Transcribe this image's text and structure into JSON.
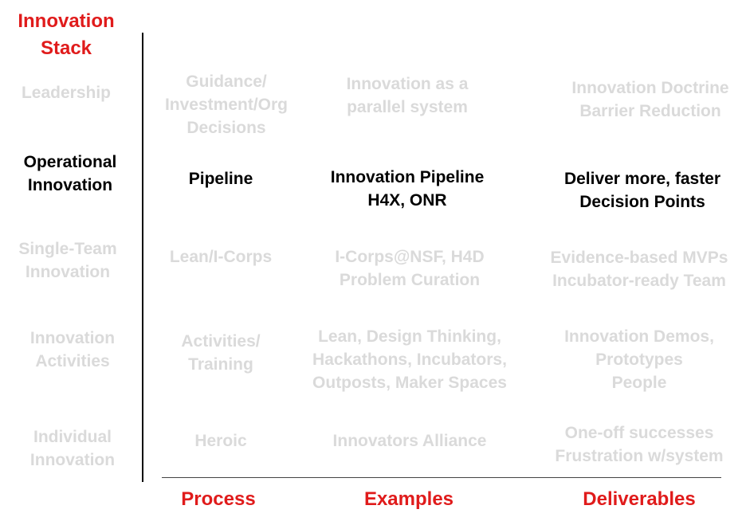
{
  "title": "Innovation\nStack",
  "colors": {
    "accent": "#e01b1b",
    "active_text": "#000000",
    "faded_text": "#dadada"
  },
  "columns": {
    "process": "Process",
    "examples": "Examples",
    "deliverables": "Deliverables"
  },
  "rows": [
    {
      "level": "Leadership",
      "process": "Guidance/\nInvestment/Org\nDecisions",
      "examples": "Innovation as a\nparallel system",
      "deliverables": "Innovation Doctrine\nBarrier Reduction",
      "highlighted": false
    },
    {
      "level": "Operational\nInnovation",
      "process": "Pipeline",
      "examples": "Innovation Pipeline\nH4X, ONR",
      "deliverables": "Deliver more, faster\nDecision Points",
      "highlighted": true
    },
    {
      "level": "Single-Team\nInnovation",
      "process": "Lean/I-Corps",
      "examples": "I-Corps@NSF, H4D\nProblem Curation",
      "deliverables": "Evidence-based MVPs\nIncubator-ready Team",
      "highlighted": false
    },
    {
      "level": "Innovation\nActivities",
      "process": "Activities/\nTraining",
      "examples": "Lean, Design Thinking,\nHackathons, Incubators,\nOutposts, Maker Spaces",
      "deliverables": "Innovation Demos,\nPrototypes\nPeople",
      "highlighted": false
    },
    {
      "level": "Individual\nInnovation",
      "process": "Heroic",
      "examples": "Innovators Alliance",
      "deliverables": "One-off successes\nFrustration w/system",
      "highlighted": false
    }
  ]
}
